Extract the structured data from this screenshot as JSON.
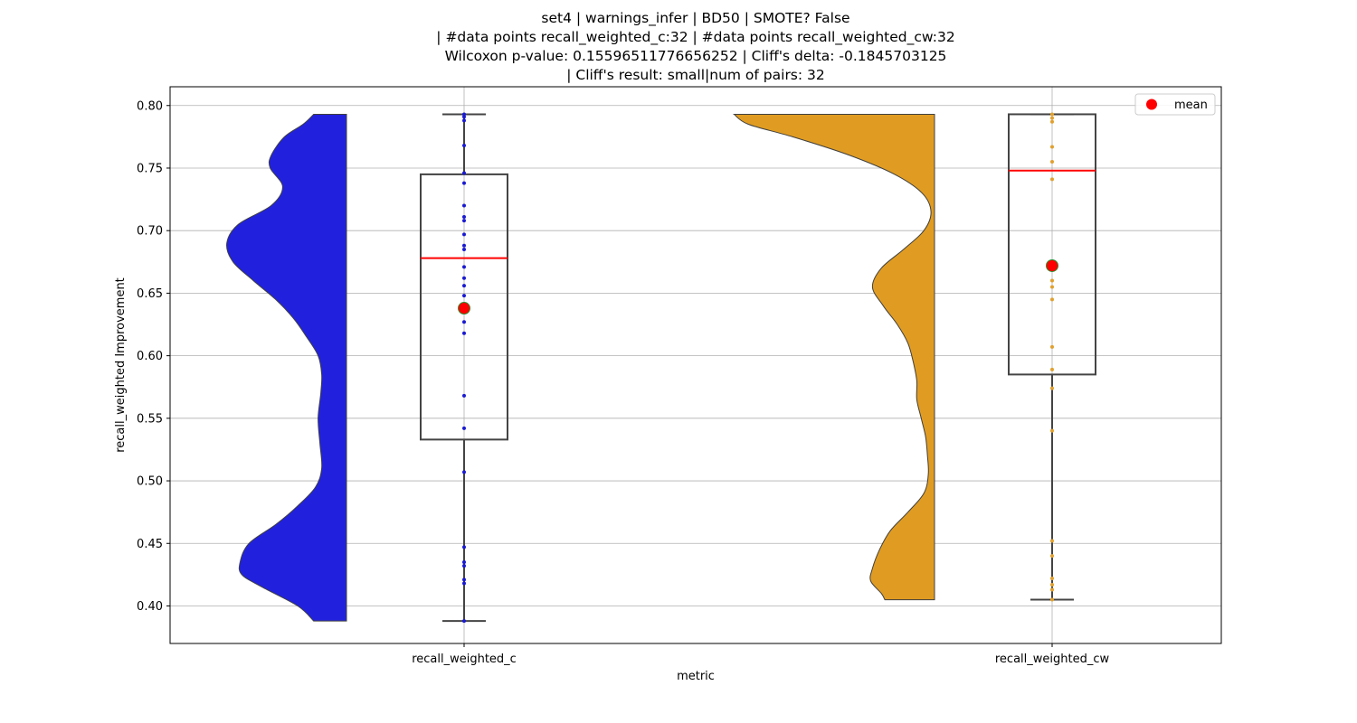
{
  "chart_data": {
    "type": "violin-box",
    "title_lines": [
      "set4 | warnings_infer | BD50 | SMOTE? False",
      "| #data points recall_weighted_c:32 | #data points recall_weighted_cw:32",
      "Wilcoxon p-value: 0.15596511776656252 | Cliff's delta: -0.1845703125",
      "| Cliff's result: small|num of pairs: 32"
    ],
    "xlabel": "metric",
    "ylabel": "recall_weighted Improvement",
    "ylim": [
      0.37,
      0.815
    ],
    "yticks": [
      "0.40",
      "0.45",
      "0.50",
      "0.55",
      "0.60",
      "0.65",
      "0.70",
      "0.75",
      "0.80"
    ],
    "grid": true,
    "legend": {
      "placement": "top-right",
      "label": "mean",
      "marker_color": "#ff0000"
    },
    "categories": [
      "recall_weighted_c",
      "recall_weighted_cw"
    ],
    "series": [
      {
        "name": "recall_weighted_c",
        "color": "#2121dd",
        "points_color": "#1a1ad0",
        "box": {
          "whisker_low": 0.388,
          "q1": 0.533,
          "median": 0.678,
          "q3": 0.745,
          "whisker_high": 0.793
        },
        "mean": 0.638,
        "points": [
          0.388,
          0.418,
          0.421,
          0.432,
          0.435,
          0.447,
          0.507,
          0.542,
          0.568,
          0.618,
          0.627,
          0.638,
          0.648,
          0.656,
          0.662,
          0.671,
          0.685,
          0.688,
          0.697,
          0.708,
          0.711,
          0.72,
          0.738,
          0.746,
          0.768,
          0.788,
          0.791,
          0.793
        ],
        "violin": [
          [
            0.793,
            0.37
          ],
          [
            0.785,
            0.49
          ],
          [
            0.775,
            0.7
          ],
          [
            0.76,
            0.85
          ],
          [
            0.75,
            0.86
          ],
          [
            0.735,
            0.72
          ],
          [
            0.72,
            0.85
          ],
          [
            0.705,
            1.22
          ],
          [
            0.69,
            1.35
          ],
          [
            0.675,
            1.28
          ],
          [
            0.66,
            1.05
          ],
          [
            0.645,
            0.8
          ],
          [
            0.63,
            0.6
          ],
          [
            0.615,
            0.45
          ],
          [
            0.6,
            0.32
          ],
          [
            0.585,
            0.28
          ],
          [
            0.57,
            0.29
          ],
          [
            0.55,
            0.32
          ],
          [
            0.53,
            0.3
          ],
          [
            0.51,
            0.28
          ],
          [
            0.495,
            0.35
          ],
          [
            0.48,
            0.55
          ],
          [
            0.465,
            0.8
          ],
          [
            0.45,
            1.1
          ],
          [
            0.435,
            1.2
          ],
          [
            0.425,
            1.18
          ],
          [
            0.415,
            0.95
          ],
          [
            0.4,
            0.55
          ],
          [
            0.388,
            0.37
          ]
        ]
      },
      {
        "name": "recall_weighted_cw",
        "color": "#e09c22",
        "points_color": "#e0a030",
        "box": {
          "whisker_low": 0.405,
          "q1": 0.585,
          "median": 0.748,
          "q3": 0.793,
          "whisker_high": 0.793
        },
        "mean": 0.672,
        "points": [
          0.405,
          0.413,
          0.417,
          0.422,
          0.44,
          0.452,
          0.54,
          0.574,
          0.589,
          0.607,
          0.645,
          0.655,
          0.66,
          0.672,
          0.741,
          0.755,
          0.767,
          0.787,
          0.79,
          0.793
        ],
        "violin": [
          [
            0.793,
            2.26
          ],
          [
            0.785,
            2.1
          ],
          [
            0.775,
            1.6
          ],
          [
            0.76,
            0.95
          ],
          [
            0.745,
            0.45
          ],
          [
            0.73,
            0.14
          ],
          [
            0.715,
            0.04
          ],
          [
            0.7,
            0.12
          ],
          [
            0.685,
            0.35
          ],
          [
            0.67,
            0.6
          ],
          [
            0.655,
            0.7
          ],
          [
            0.64,
            0.58
          ],
          [
            0.625,
            0.42
          ],
          [
            0.61,
            0.3
          ],
          [
            0.595,
            0.24
          ],
          [
            0.58,
            0.2
          ],
          [
            0.565,
            0.2
          ],
          [
            0.55,
            0.15
          ],
          [
            0.535,
            0.1
          ],
          [
            0.52,
            0.08
          ],
          [
            0.505,
            0.07
          ],
          [
            0.49,
            0.12
          ],
          [
            0.475,
            0.3
          ],
          [
            0.46,
            0.5
          ],
          [
            0.445,
            0.62
          ],
          [
            0.43,
            0.7
          ],
          [
            0.42,
            0.72
          ],
          [
            0.41,
            0.6
          ],
          [
            0.405,
            0.56
          ]
        ]
      }
    ]
  }
}
